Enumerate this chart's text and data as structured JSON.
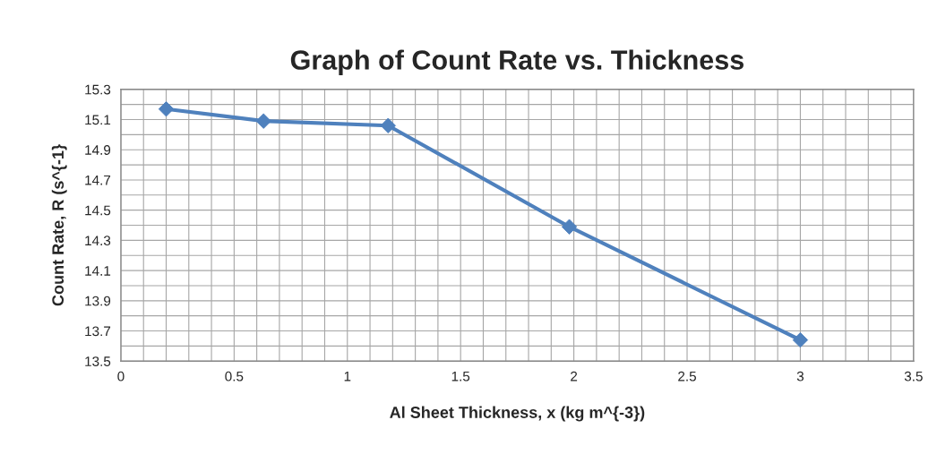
{
  "chart_data": {
    "type": "line",
    "title": "Graph of Count Rate vs. Thickness",
    "xlabel": "Al Sheet Thickness, x (kg m^{-3})",
    "ylabel": "Count Rate, R (s^{-1}",
    "x": [
      0.2,
      0.63,
      1.18,
      1.98,
      3.0
    ],
    "series": [
      {
        "color": "#4f81bd",
        "values": [
          15.17,
          15.09,
          15.06,
          14.39,
          13.64
        ]
      }
    ],
    "xlim": [
      0,
      3.5
    ],
    "xticks": [
      0,
      0.5,
      1,
      1.5,
      2,
      2.5,
      3,
      3.5
    ],
    "ylim": [
      13.5,
      15.3
    ],
    "yticks": [
      13.5,
      13.7,
      13.9,
      14.1,
      14.3,
      14.5,
      14.7,
      14.9,
      15.1,
      15.3
    ],
    "grid": true,
    "legend": false,
    "marker": "diamond",
    "line_style": "solid"
  }
}
